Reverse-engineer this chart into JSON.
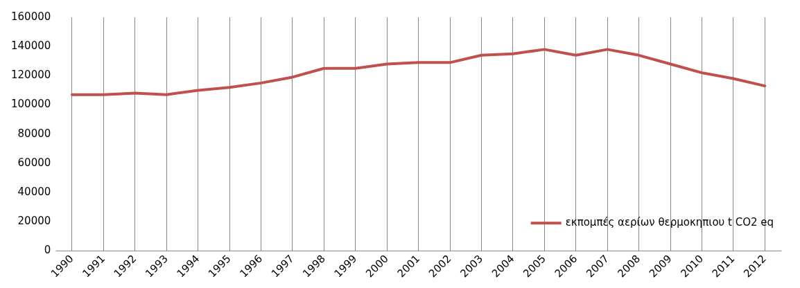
{
  "chart_data": {
    "type": "line",
    "categories": [
      "1990",
      "1991",
      "1992",
      "1993",
      "1994",
      "1995",
      "1996",
      "1997",
      "1998",
      "1999",
      "2000",
      "2001",
      "2002",
      "2003",
      "2004",
      "2005",
      "2006",
      "2007",
      "2008",
      "2009",
      "2010",
      "2011",
      "2012"
    ],
    "series": [
      {
        "name": "εκπομπές αερίων θερμοκηπιου t CO2 eq",
        "color": "#c0504d",
        "values": [
          107000,
          107000,
          108000,
          107000,
          110000,
          112000,
          115000,
          119000,
          125000,
          125000,
          128000,
          129000,
          129000,
          134000,
          135000,
          138000,
          134000,
          138000,
          134000,
          128000,
          122000,
          118000,
          113000
        ]
      }
    ],
    "ylim": [
      0,
      160000
    ],
    "yticks": [
      0,
      20000,
      40000,
      60000,
      80000,
      100000,
      120000,
      140000,
      160000
    ],
    "grid": "x",
    "legend": "bottom right",
    "marker": "none",
    "line_style": "solid"
  }
}
